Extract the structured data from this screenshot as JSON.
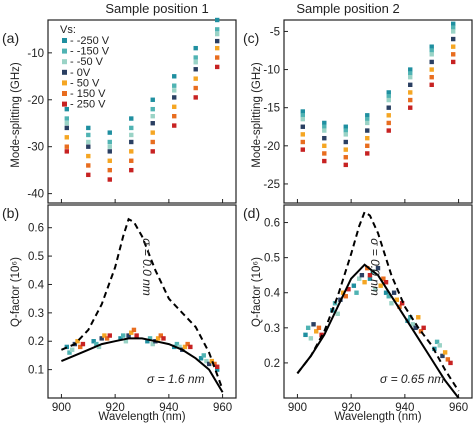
{
  "figure": {
    "column_titles": [
      "Sample position 1",
      "Sample position 2"
    ],
    "panel_letters": [
      "(a)",
      "(b)",
      "(c)",
      "(d)"
    ],
    "x_label": "Wavelength (nm)",
    "top_y_label": "Mode-splitting (GHz)",
    "bottom_y_label": "Q-factor (10⁶)"
  },
  "legend": {
    "title": "Vs:",
    "entries": [
      {
        "label": "-250 V",
        "color": "#1f8fa0"
      },
      {
        "label": "-150 V",
        "color": "#4fb3b3"
      },
      {
        "label": "-50 V",
        "color": "#9ad3c6"
      },
      {
        "label": "0V",
        "color": "#2a3f62"
      },
      {
        "label": "50 V",
        "color": "#f5a623"
      },
      {
        "label": "150 V",
        "color": "#e86d1f"
      },
      {
        "label": "250 V",
        "color": "#c72222"
      }
    ]
  },
  "chart_data": [
    {
      "panel": "(a)",
      "type": "scatter",
      "xlim": [
        895,
        965
      ],
      "ylim": [
        -42,
        -3
      ],
      "xticks": [
        900,
        920,
        940,
        960
      ],
      "yticks": [
        -40,
        -30,
        -20,
        -10
      ],
      "series": [
        {
          "name": "-250 V",
          "x": [
            902,
            910,
            918,
            926,
            934,
            942,
            950,
            958
          ],
          "y": [
            -22,
            -26,
            -27,
            -24,
            -20,
            -15,
            -9,
            -3
          ]
        },
        {
          "name": "-150 V",
          "x": [
            902,
            910,
            918,
            926,
            934,
            942,
            950,
            958
          ],
          "y": [
            -24,
            -27.5,
            -29,
            -26,
            -22,
            -17,
            -11,
            -5
          ]
        },
        {
          "name": "-50 V",
          "x": [
            902,
            910,
            918,
            926,
            934,
            942,
            950,
            958
          ],
          "y": [
            -25,
            -29,
            -30,
            -27.5,
            -23.5,
            -18,
            -12,
            -6
          ]
        },
        {
          "name": "0V",
          "x": [
            902,
            910,
            918,
            926,
            934,
            942,
            950,
            958
          ],
          "y": [
            -26,
            -30,
            -31,
            -29,
            -25,
            -19.5,
            -13.5,
            -7.5
          ]
        },
        {
          "name": "50 V",
          "x": [
            902,
            910,
            918,
            926,
            934,
            942,
            950,
            958
          ],
          "y": [
            -28,
            -32,
            -33,
            -31,
            -27,
            -21.5,
            -15.5,
            -9
          ]
        },
        {
          "name": "150 V",
          "x": [
            902,
            910,
            918,
            926,
            934,
            942,
            950,
            958
          ],
          "y": [
            -30,
            -34,
            -35,
            -33,
            -29,
            -23.5,
            -17.5,
            -11
          ]
        },
        {
          "name": "250 V",
          "x": [
            902,
            910,
            918,
            926,
            934,
            942,
            950,
            958
          ],
          "y": [
            -31,
            -36,
            -37,
            -35,
            -31,
            -25.5,
            -19.5,
            -13
          ]
        }
      ]
    },
    {
      "panel": "(b)",
      "type": "scatter",
      "xlim": [
        895,
        965
      ],
      "ylim": [
        0,
        0.68
      ],
      "xticks": [
        900,
        920,
        940,
        960
      ],
      "yticks": [
        0.1,
        0.2,
        0.3,
        0.4,
        0.5,
        0.6
      ],
      "series": [
        {
          "name": "-250 V",
          "x": [
            902,
            912,
            922,
            932,
            942,
            952,
            958
          ],
          "y": [
            0.18,
            0.2,
            0.21,
            0.2,
            0.18,
            0.14,
            0.1
          ]
        },
        {
          "name": "-150 V",
          "x": [
            903,
            913,
            923,
            933,
            943,
            953
          ],
          "y": [
            0.16,
            0.19,
            0.22,
            0.21,
            0.19,
            0.15
          ]
        },
        {
          "name": "-50 V",
          "x": [
            904,
            914,
            924,
            934,
            944,
            954
          ],
          "y": [
            0.17,
            0.18,
            0.2,
            0.19,
            0.18,
            0.13
          ]
        },
        {
          "name": "0V",
          "x": [
            905,
            915,
            925,
            935,
            945,
            955
          ],
          "y": [
            0.19,
            0.21,
            0.22,
            0.2,
            0.17,
            0.12
          ]
        },
        {
          "name": "50 V",
          "x": [
            906,
            916,
            926,
            936,
            946,
            956
          ],
          "y": [
            0.2,
            0.22,
            0.23,
            0.21,
            0.18,
            0.13
          ]
        },
        {
          "name": "150 V",
          "x": [
            907,
            917,
            927,
            937,
            947,
            957
          ],
          "y": [
            0.18,
            0.21,
            0.24,
            0.22,
            0.19,
            0.12
          ]
        },
        {
          "name": "250 V",
          "x": [
            908,
            918,
            928,
            938,
            948,
            958
          ],
          "y": [
            0.19,
            0.22,
            0.22,
            0.21,
            0.18,
            0.11
          ]
        }
      ],
      "curves": [
        {
          "style": "dashed",
          "x": [
            900,
            905,
            910,
            915,
            920,
            923,
            925,
            927,
            930,
            935,
            940,
            945,
            950,
            955,
            960
          ],
          "y": [
            0.17,
            0.19,
            0.24,
            0.33,
            0.46,
            0.57,
            0.63,
            0.62,
            0.57,
            0.45,
            0.35,
            0.3,
            0.25,
            0.16,
            0.03
          ]
        },
        {
          "style": "solid",
          "x": [
            900,
            905,
            910,
            915,
            920,
            925,
            930,
            935,
            940,
            945,
            950,
            955,
            960
          ],
          "y": [
            0.13,
            0.15,
            0.17,
            0.19,
            0.2,
            0.21,
            0.21,
            0.2,
            0.19,
            0.17,
            0.14,
            0.1,
            0.02
          ]
        }
      ],
      "annotations": [
        {
          "text": "σ = 0.0 nm"
        },
        {
          "text": "σ = 1.6 nm"
        }
      ]
    },
    {
      "panel": "(c)",
      "type": "scatter",
      "xlim": [
        895,
        965
      ],
      "ylim": [
        -27.5,
        -3.5
      ],
      "xticks": [
        900,
        920,
        940,
        960
      ],
      "yticks": [
        -25,
        -20,
        -15,
        -10,
        -5
      ],
      "series": [
        {
          "name": "-250 V",
          "x": [
            902,
            910,
            918,
            926,
            934,
            942,
            950,
            958
          ],
          "y": [
            -15.5,
            -17,
            -17.5,
            -16,
            -13,
            -10,
            -7,
            -4
          ]
        },
        {
          "name": "-150 V",
          "x": [
            902,
            910,
            918,
            926,
            934,
            942,
            950,
            958
          ],
          "y": [
            -16,
            -17.5,
            -18,
            -16.5,
            -13.5,
            -10.5,
            -7.5,
            -4.5
          ]
        },
        {
          "name": "-50 V",
          "x": [
            902,
            910,
            918,
            926,
            934,
            942,
            950,
            958
          ],
          "y": [
            -16.5,
            -18,
            -18.5,
            -17,
            -14,
            -11,
            -8,
            -5
          ]
        },
        {
          "name": "0V",
          "x": [
            902,
            910,
            918,
            926,
            934,
            942,
            950,
            958
          ],
          "y": [
            -17.5,
            -19,
            -19.5,
            -18,
            -15,
            -12,
            -9,
            -6
          ]
        },
        {
          "name": "50 V",
          "x": [
            902,
            910,
            918,
            926,
            934,
            942,
            950,
            958
          ],
          "y": [
            -18.5,
            -20,
            -20.5,
            -19,
            -16,
            -13,
            -10,
            -7
          ]
        },
        {
          "name": "150 V",
          "x": [
            902,
            910,
            918,
            926,
            934,
            942,
            950,
            958
          ],
          "y": [
            -19.5,
            -21,
            -21.5,
            -20,
            -17,
            -14,
            -11,
            -8
          ]
        },
        {
          "name": "250 V",
          "x": [
            902,
            910,
            918,
            926,
            934,
            942,
            950,
            958
          ],
          "y": [
            -20.5,
            -22,
            -22.5,
            -21,
            -18,
            -15,
            -12,
            -9
          ]
        }
      ]
    },
    {
      "panel": "(d)",
      "type": "scatter",
      "xlim": [
        895,
        965
      ],
      "ylim": [
        0.1,
        0.65
      ],
      "xticks": [
        900,
        920,
        940,
        960
      ],
      "yticks": [
        0.2,
        0.3,
        0.4,
        0.5,
        0.6
      ],
      "series": [
        {
          "name": "-250 V",
          "x": [
            903,
            913,
            921,
            927,
            933,
            941,
            951
          ],
          "y": [
            0.28,
            0.35,
            0.42,
            0.44,
            0.4,
            0.32,
            0.24
          ]
        },
        {
          "name": "-150 V",
          "x": [
            904,
            914,
            922,
            928,
            934,
            942,
            952
          ],
          "y": [
            0.3,
            0.37,
            0.4,
            0.46,
            0.39,
            0.33,
            0.26
          ]
        },
        {
          "name": "-50 V",
          "x": [
            905,
            915,
            923,
            929,
            935,
            943,
            953
          ],
          "y": [
            0.27,
            0.34,
            0.44,
            0.41,
            0.37,
            0.31,
            0.25
          ]
        },
        {
          "name": "0V",
          "x": [
            906,
            916,
            924,
            930,
            936,
            944,
            954
          ],
          "y": [
            0.31,
            0.38,
            0.45,
            0.47,
            0.4,
            0.3,
            0.22
          ]
        },
        {
          "name": "50 V",
          "x": [
            907,
            917,
            925,
            931,
            937,
            945,
            955
          ],
          "y": [
            0.29,
            0.4,
            0.43,
            0.42,
            0.38,
            0.33,
            0.23
          ]
        },
        {
          "name": "150 V",
          "x": [
            908,
            918,
            926,
            932,
            938,
            946,
            956
          ],
          "y": [
            0.3,
            0.39,
            0.47,
            0.44,
            0.36,
            0.29,
            0.21
          ]
        },
        {
          "name": "250 V",
          "x": [
            909,
            919,
            927,
            933,
            939,
            947,
            957
          ],
          "y": [
            0.28,
            0.41,
            0.45,
            0.43,
            0.37,
            0.3,
            0.2
          ]
        }
      ],
      "curves": [
        {
          "style": "dashed",
          "x": [
            900,
            905,
            910,
            915,
            920,
            923,
            925,
            927,
            930,
            935,
            940,
            945,
            950,
            955,
            960
          ],
          "y": [
            0.17,
            0.22,
            0.29,
            0.39,
            0.51,
            0.59,
            0.63,
            0.62,
            0.57,
            0.45,
            0.36,
            0.3,
            0.25,
            0.18,
            0.12
          ]
        },
        {
          "style": "solid",
          "x": [
            900,
            905,
            910,
            915,
            920,
            925,
            930,
            935,
            940,
            945,
            950,
            955,
            960
          ],
          "y": [
            0.17,
            0.22,
            0.28,
            0.36,
            0.44,
            0.48,
            0.45,
            0.39,
            0.33,
            0.27,
            0.21,
            0.15,
            0.1
          ]
        }
      ],
      "annotations": [
        {
          "text": "σ = 0.0 nm"
        },
        {
          "text": "σ = 0.65 nm"
        }
      ]
    }
  ]
}
